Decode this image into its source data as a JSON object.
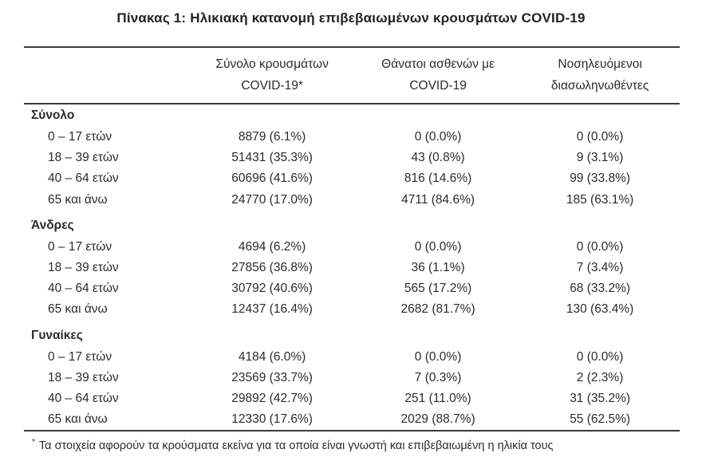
{
  "title": "Πίνακας 1: Ηλικιακή κατανομή επιβεβαιωμένων κρουσμάτων COVID-19",
  "headers": [
    {
      "line1": "Σύνολο κρουσμάτων",
      "line2": "COVID-19*"
    },
    {
      "line1": "Θάνατοι ασθενών με",
      "line2": "COVID-19"
    },
    {
      "line1": "Νοσηλευόμενοι",
      "line2": "διασωληνωθέντες"
    }
  ],
  "sections": [
    {
      "label": "Σύνολο",
      "rows": [
        {
          "age": "0 – 17 ετών",
          "cases": "8879 (6.1%)",
          "deaths": "0 (0.0%)",
          "intubated": "0 (0.0%)"
        },
        {
          "age": "18 – 39 ετών",
          "cases": "51431 (35.3%)",
          "deaths": "43 (0.8%)",
          "intubated": "9 (3.1%)"
        },
        {
          "age": "40 – 64 ετών",
          "cases": "60696 (41.6%)",
          "deaths": "816 (14.6%)",
          "intubated": "99 (33.8%)"
        },
        {
          "age": "65 και άνω",
          "cases": "24770 (17.0%)",
          "deaths": "4711 (84.6%)",
          "intubated": "185 (63.1%)"
        }
      ]
    },
    {
      "label": "Άνδρες",
      "rows": [
        {
          "age": "0 – 17 ετών",
          "cases": "4694 (6.2%)",
          "deaths": "0 (0.0%)",
          "intubated": "0 (0.0%)"
        },
        {
          "age": "18 – 39 ετών",
          "cases": "27856 (36.8%)",
          "deaths": "36 (1.1%)",
          "intubated": "7 (3.4%)"
        },
        {
          "age": "40 – 64 ετών",
          "cases": "30792 (40.6%)",
          "deaths": "565 (17.2%)",
          "intubated": "68 (33.2%)"
        },
        {
          "age": "65 και άνω",
          "cases": "12437 (16.4%)",
          "deaths": "2682 (81.7%)",
          "intubated": "130 (63.4%)"
        }
      ]
    },
    {
      "label": "Γυναίκες",
      "rows": [
        {
          "age": "0 – 17 ετών",
          "cases": "4184 (6.0%)",
          "deaths": "0 (0.0%)",
          "intubated": "0 (0.0%)"
        },
        {
          "age": "18 – 39 ετών",
          "cases": "23569 (33.7%)",
          "deaths": "7 (0.3%)",
          "intubated": "2 (2.3%)"
        },
        {
          "age": "40 – 64 ετών",
          "cases": "29892 (42.7%)",
          "deaths": "251 (11.0%)",
          "intubated": "31 (35.2%)"
        },
        {
          "age": "65 και άνω",
          "cases": "12330 (17.6%)",
          "deaths": "2029 (88.7%)",
          "intubated": "55 (62.5%)"
        }
      ]
    }
  ],
  "footnote": {
    "marker": "*",
    "text": "Τα στοιχεία αφορούν τα κρούσματα εκείνα για τα οποία είναι γνωστή και επιβεβαιωμένη η ηλικία τους"
  }
}
